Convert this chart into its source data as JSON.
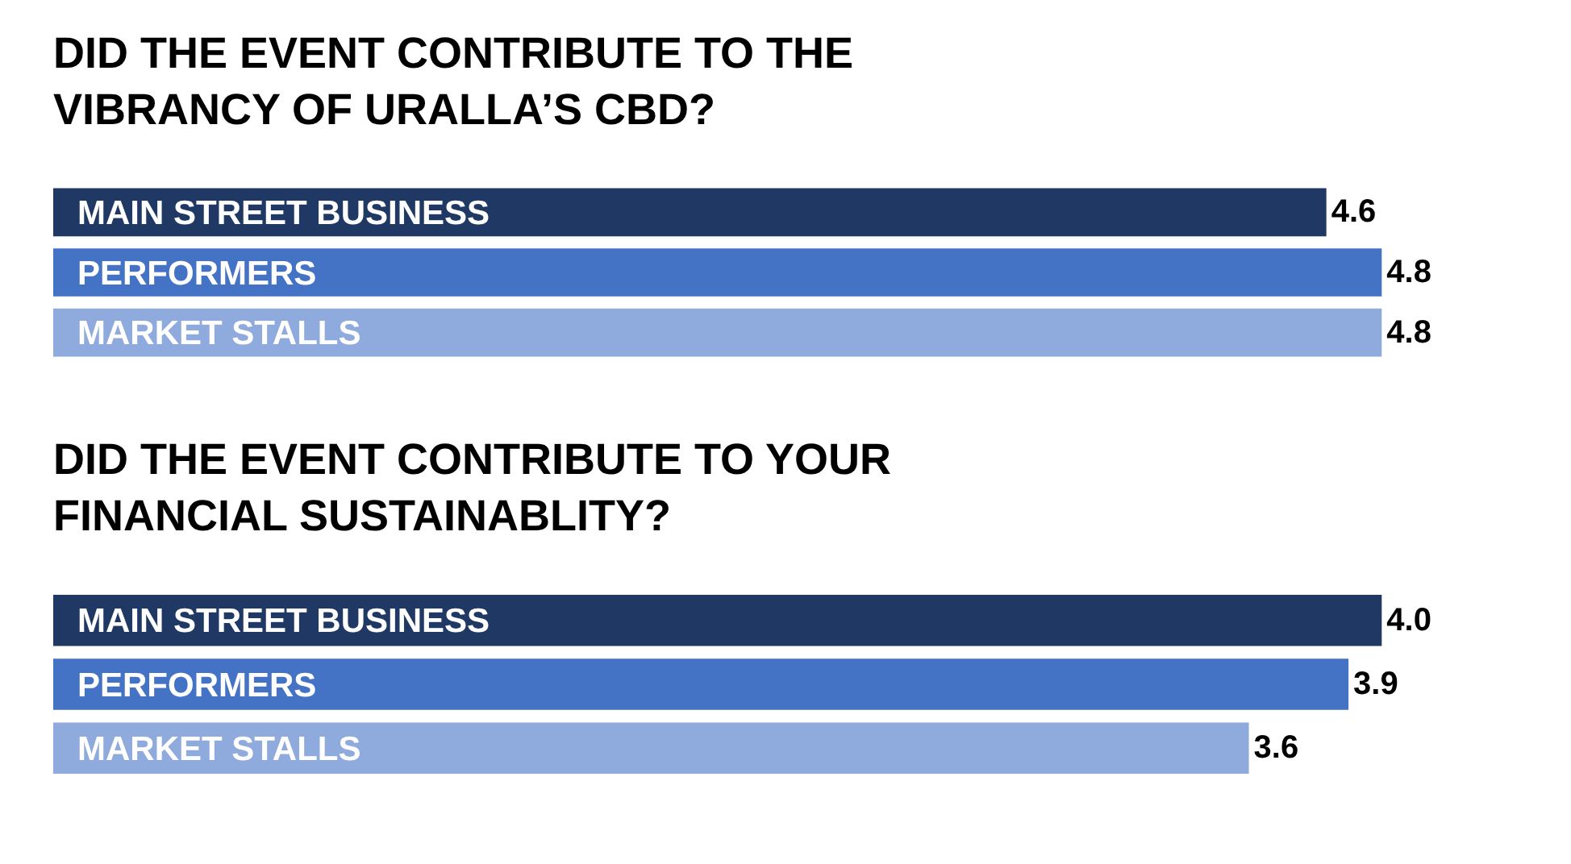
{
  "chart_data": [
    {
      "type": "bar",
      "orientation": "horizontal",
      "title": "DID THE EVENT CONTRIBUTE TO THE VIBRANCY OF URALLA’S CBD?",
      "categories": [
        "MAIN STREET BUSINESS",
        "PERFORMERS",
        "MARKET STALLS"
      ],
      "values": [
        4.6,
        4.8,
        4.8
      ],
      "value_labels": [
        "4.6",
        "4.8",
        "4.8"
      ],
      "colors": [
        "#1f3864",
        "#4472c4",
        "#8faadc"
      ],
      "tick_labels": "y",
      "legend": false
    },
    {
      "type": "bar",
      "orientation": "horizontal",
      "title": "DID THE EVENT CONTRIBUTE TO YOUR FINANCIAL SUSTAINABLITY?",
      "categories": [
        "MAIN STREET BUSINESS",
        "PERFORMERS",
        "MARKET STALLS"
      ],
      "values": [
        4.0,
        3.9,
        3.6
      ],
      "value_labels": [
        "4.0",
        "3.9",
        "3.6"
      ],
      "colors": [
        "#1f3864",
        "#4472c4",
        "#8faadc"
      ],
      "tick_labels": "y",
      "legend": false
    }
  ]
}
